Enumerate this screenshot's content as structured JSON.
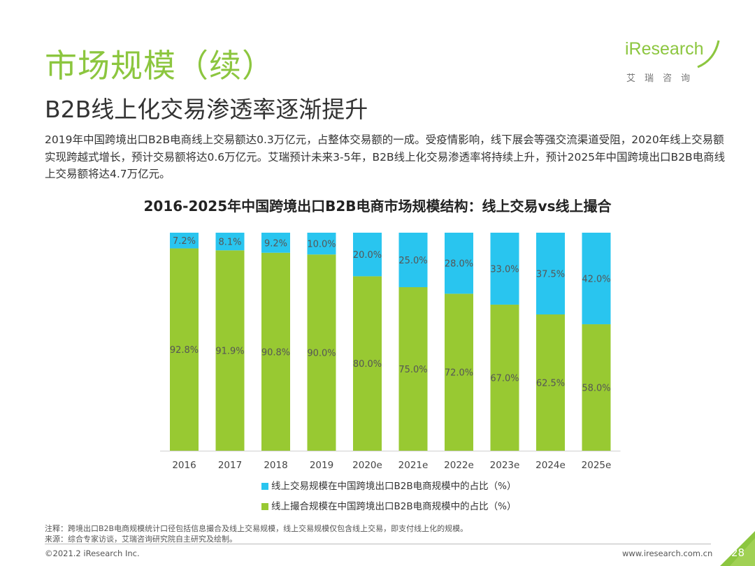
{
  "header": {
    "title": "市场规模（续）",
    "subtitle": "B2B线上化交易渗透率逐渐提升",
    "logo_main": "iResearch",
    "logo_sub": "艾瑞咨询"
  },
  "body_text": "2019年中国跨境出口B2B电商线上交易额达0.3万亿元，占整体交易额的一成。受疫情影响，线下展会等强交流渠道受阻，2020年线上交易额实现跨越式增长，预计交易额将达0.6万亿元。艾瑞预计未来3-5年，B2B线上化交易渗透率将持续上升，预计2025年中国跨境出口B2B电商线上交易额将达4.7万亿元。",
  "colors": {
    "online": "#29c5ef",
    "offline": "#98c932",
    "accent": "#8cc63f"
  },
  "chart_data": {
    "type": "bar",
    "stacked": true,
    "title": "2016-2025年中国跨境出口B2B电商市场规模结构：线上交易vs线上撮合",
    "categories": [
      "2016",
      "2017",
      "2018",
      "2019",
      "2020e",
      "2021e",
      "2022e",
      "2023e",
      "2024e",
      "2025e"
    ],
    "series": [
      {
        "name": "线上撮合规模在中国跨境出口B2B电商规模中的占比（%）",
        "values": [
          92.8,
          91.9,
          90.8,
          90.0,
          80.0,
          75.0,
          72.0,
          67.0,
          62.5,
          58.0
        ],
        "labels": [
          "92.8%",
          "91.9%",
          "90.8%",
          "90.0%",
          "80.0%",
          "75.0%",
          "72.0%",
          "67.0%",
          "62.5%",
          "58.0%"
        ]
      },
      {
        "name": "线上交易规模在中国跨境出口B2B电商规模中的占比（%）",
        "values": [
          7.2,
          8.1,
          9.2,
          10.0,
          20.0,
          25.0,
          28.0,
          33.0,
          37.5,
          42.0
        ],
        "labels": [
          "7.2%",
          "8.1%",
          "9.2%",
          "10.0%",
          "20.0%",
          "25.0%",
          "28.0%",
          "33.0%",
          "37.5%",
          "42.0%"
        ]
      }
    ],
    "ylim": [
      0,
      100
    ],
    "legend_position": "bottom"
  },
  "legend": {
    "online": "线上交易规模在中国跨境出口B2B电商规模中的占比（%）",
    "offline": "线上撮合规模在中国跨境出口B2B电商规模中的占比（%）"
  },
  "footer": {
    "note": "注释：跨境出口B2B电商规模统计口径包括信息撮合及线上交易规模，线上交易规模仅包含线上交易，即支付线上化的规模。",
    "source": "来源：综合专家访谈，艾瑞咨询研究院自主研究及绘制。",
    "copyright": "©2021.2 iResearch Inc.",
    "website": "www.iresearch.com.cn",
    "page": "28"
  }
}
